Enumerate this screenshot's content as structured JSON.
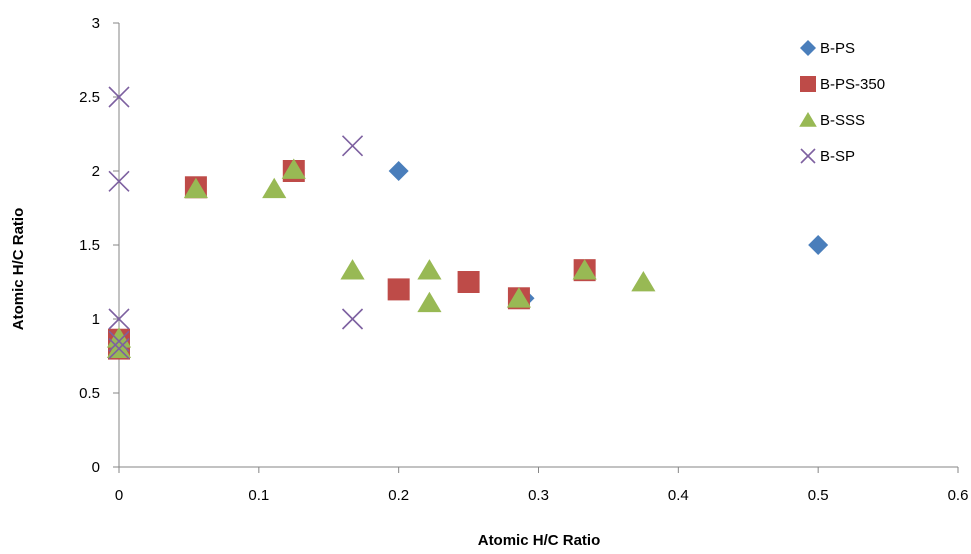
{
  "chart_data": {
    "type": "scatter",
    "xlabel": "Atomic H/C Ratio",
    "ylabel": "Atomic H/C Ratio",
    "xlim": [
      0,
      0.6
    ],
    "ylim": [
      0,
      3
    ],
    "x_ticks": [
      "0",
      "0.1",
      "0.2",
      "0.3",
      "0.4",
      "0.5",
      "0.6"
    ],
    "y_ticks": [
      "0",
      "0.5",
      "1",
      "1.5",
      "2",
      "2.5",
      "3"
    ],
    "grid": false,
    "legend_position": "top-right",
    "series": [
      {
        "name": "B-PS",
        "marker": "diamond",
        "color": "#4a7ebb",
        "points": [
          [
            0,
            0.8
          ],
          [
            0.2,
            2.0
          ],
          [
            0.29,
            1.14
          ],
          [
            0.5,
            1.5
          ]
        ]
      },
      {
        "name": "B-PS-350",
        "marker": "square",
        "color": "#be4b48",
        "points": [
          [
            0,
            0.86
          ],
          [
            0,
            0.8
          ],
          [
            0.055,
            1.89
          ],
          [
            0.125,
            2.0
          ],
          [
            0.2,
            1.2
          ],
          [
            0.25,
            1.25
          ],
          [
            0.286,
            1.14
          ],
          [
            0.333,
            1.33
          ]
        ]
      },
      {
        "name": "B-SSS",
        "marker": "triangle",
        "color": "#98b954",
        "points": [
          [
            0,
            0.87
          ],
          [
            0,
            0.8
          ],
          [
            0.055,
            1.88
          ],
          [
            0.111,
            1.88
          ],
          [
            0.125,
            2.01
          ],
          [
            0.167,
            1.33
          ],
          [
            0.222,
            1.33
          ],
          [
            0.222,
            1.11
          ],
          [
            0.286,
            1.14
          ],
          [
            0.333,
            1.33
          ],
          [
            0.375,
            1.25
          ]
        ]
      },
      {
        "name": "B-SP",
        "marker": "x",
        "color": "#7d60a0",
        "points": [
          [
            0,
            2.5
          ],
          [
            0,
            1.93
          ],
          [
            0,
            1.0
          ],
          [
            0,
            0.85
          ],
          [
            0,
            0.8
          ],
          [
            0.167,
            2.17
          ],
          [
            0.167,
            1.0
          ]
        ]
      }
    ]
  }
}
